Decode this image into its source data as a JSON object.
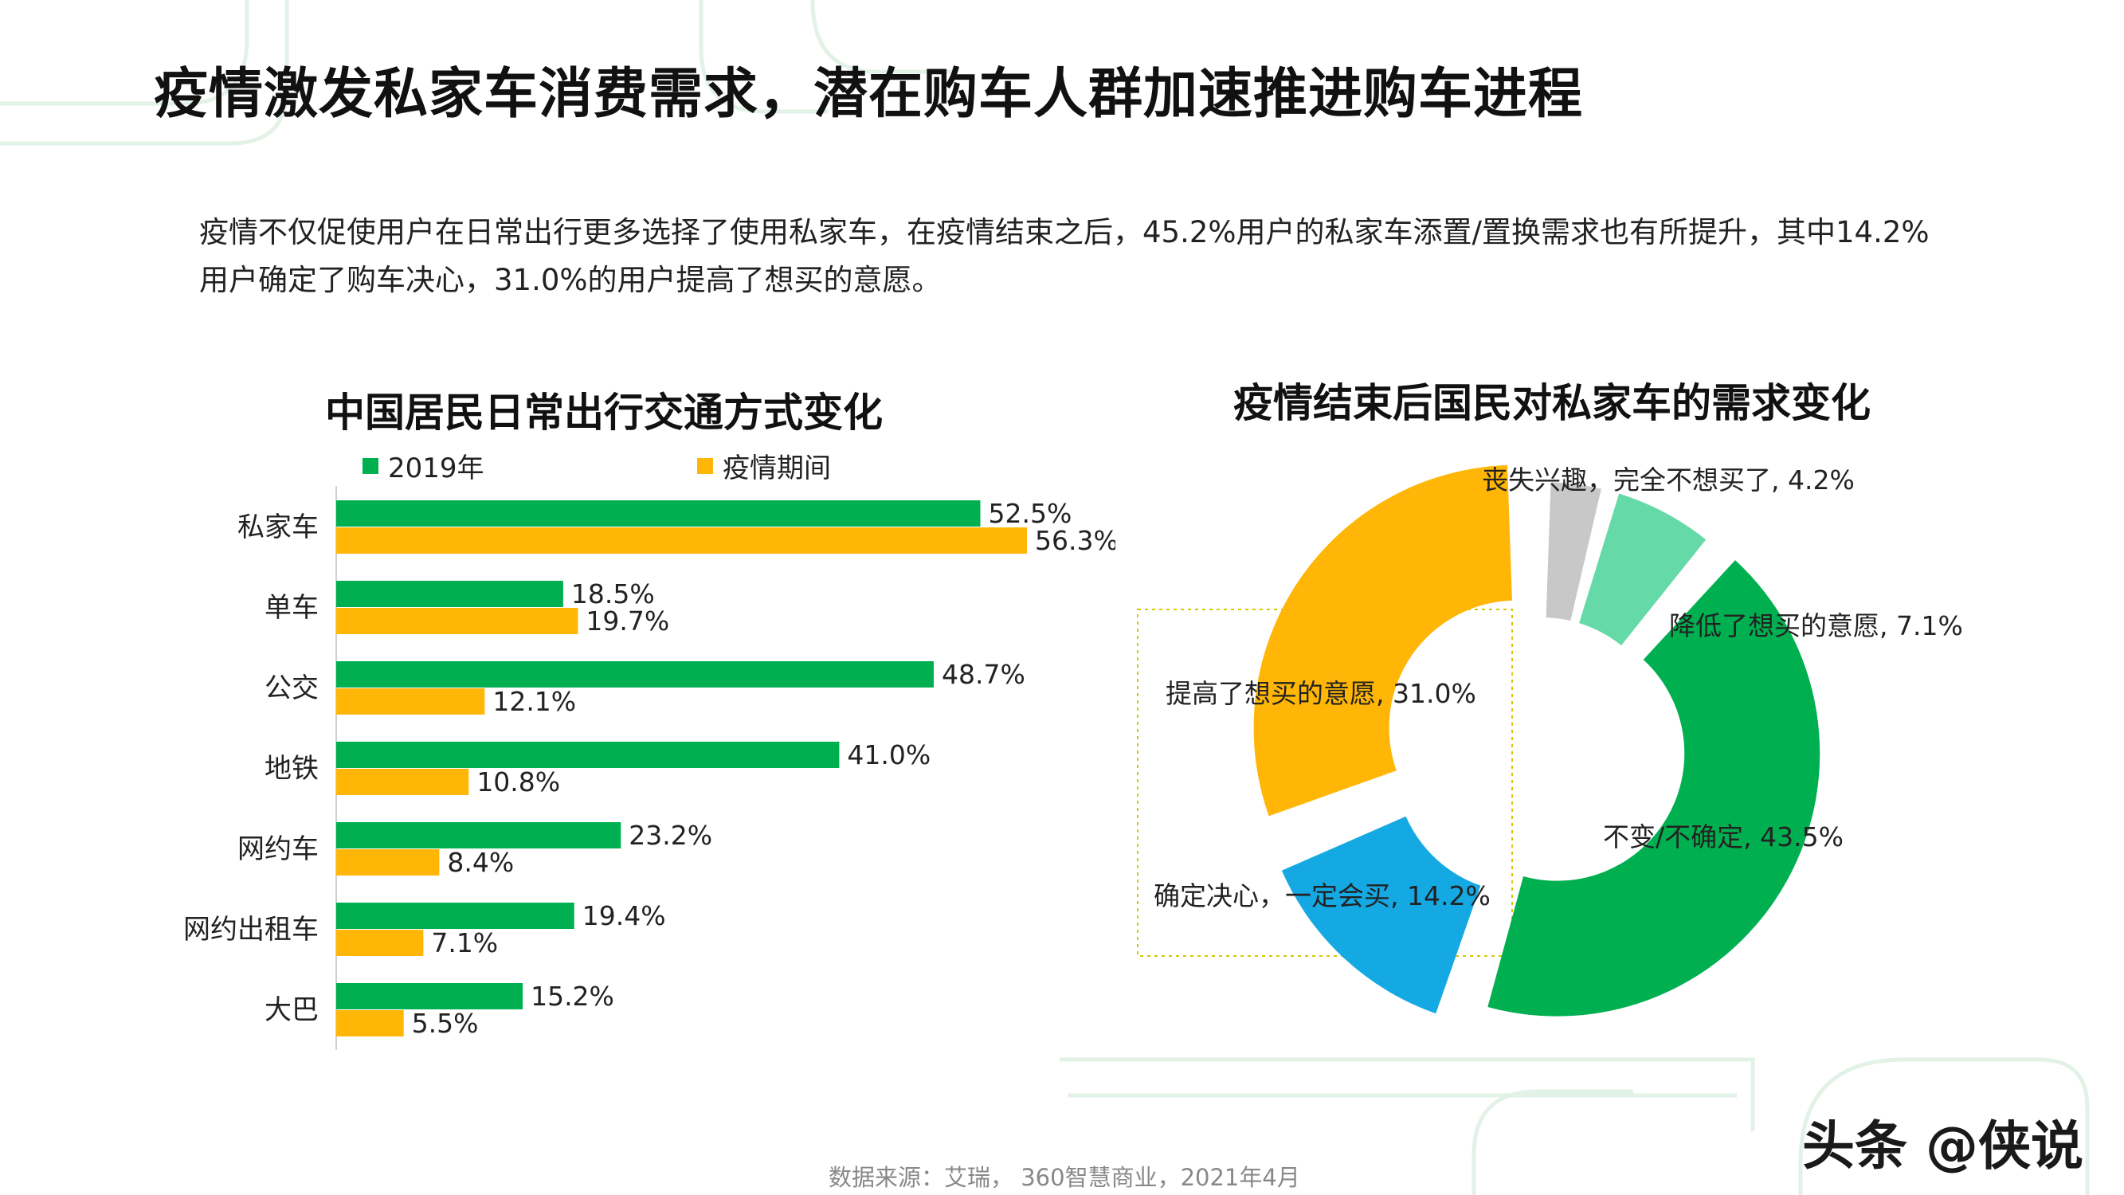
{
  "title": "疫情激发私家车消费需求，潜在购车人群加速推进购车进程",
  "intro": "疫情不仅促使用户在日常出行更多选择了使用私家车，在疫情结束之后，45.2%用户的私家车添置/置换需求也有所提升，其中14.2%用户确定了购车决心，31.0%的用户提高了想买的意愿。",
  "source": "数据来源：艾瑞， 360智慧商业，2021年4月",
  "watermark": "头条 @侠说",
  "colors": {
    "green": "#00B050",
    "orange": "#FFB606",
    "gray": "#C8C8C8",
    "mint": "#66D9A8",
    "blue": "#14A9E2"
  },
  "chart_data": [
    {
      "type": "bar",
      "orientation": "horizontal",
      "title": "中国居民日常出行交通方式变化",
      "categories": [
        "私家车",
        "单车",
        "公交",
        "地铁",
        "网约车",
        "网约出租车",
        "大巴"
      ],
      "series": [
        {
          "name": "2019年",
          "color": "#00B050",
          "values": [
            52.5,
            18.5,
            48.7,
            41.0,
            23.2,
            19.4,
            15.2
          ],
          "labels": [
            "52.5%",
            "18.5%",
            "48.7%",
            "41.0%",
            "23.2%",
            "19.4%",
            "15.2%"
          ]
        },
        {
          "name": "疫情期间",
          "color": "#FFB606",
          "values": [
            56.3,
            19.7,
            12.1,
            10.8,
            8.4,
            7.1,
            5.5
          ],
          "labels": [
            "56.3%",
            "19.7%",
            "12.1%",
            "10.8%",
            "8.4%",
            "7.1%",
            "5.5%"
          ]
        }
      ],
      "legend": "top"
    },
    {
      "type": "pie",
      "style": "donut",
      "title": "疫情结束后国民对私家车的需求变化",
      "slices": [
        {
          "label": "丧失兴趣，完全不想买了, 4.2%",
          "value": 4.2,
          "color": "#C8C8C8"
        },
        {
          "label": "降低了想买的意愿, 7.1%",
          "value": 7.1,
          "color": "#66D9A8"
        },
        {
          "label": "不变/不确定, 43.5%",
          "value": 43.5,
          "color": "#00B050"
        },
        {
          "label": "确定决心，一定会买, 14.2%",
          "value": 14.2,
          "color": "#14A9E2"
        },
        {
          "label": "提高了想买的意愿, 31.0%",
          "value": 31.0,
          "color": "#FFB606"
        }
      ]
    }
  ]
}
